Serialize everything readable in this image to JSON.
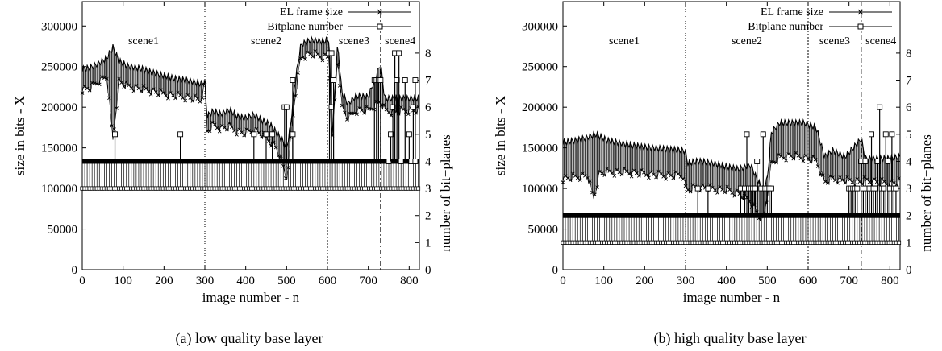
{
  "chart_data": [
    {
      "type": "line",
      "caption": "(a) low quality base layer",
      "xlabel": "image number - n",
      "ylabel": "size in bits - X",
      "y2label": "number of bit−planes",
      "xlim": [
        0,
        825
      ],
      "ylim": [
        0,
        330000
      ],
      "y2lim": [
        0,
        9.9
      ],
      "x_ticks": [
        0,
        100,
        200,
        300,
        400,
        500,
        600,
        700,
        800
      ],
      "y_ticks": [
        0,
        50000,
        100000,
        150000,
        200000,
        250000,
        300000
      ],
      "y2_ticks": [
        0,
        1,
        2,
        3,
        4,
        5,
        6,
        7,
        8
      ],
      "legend": [
        "EL frame size",
        "Bitplane number"
      ],
      "scene_lines": [
        {
          "x": 300,
          "label": "scene1",
          "label_x": 150
        },
        {
          "x": 600,
          "label": "scene2",
          "label_x": 450
        },
        {
          "x": 730,
          "label": "scene3",
          "label_x": 665
        },
        {
          "label": "scene4",
          "label_x": 778
        }
      ],
      "series": [
        {
          "name": "EL frame size",
          "upper": [
            [
              0,
              248000
            ],
            [
              20,
              250000
            ],
            [
              40,
              255000
            ],
            [
              60,
              262000
            ],
            [
              75,
              275000
            ],
            [
              90,
              258000
            ],
            [
              110,
              252000
            ],
            [
              130,
              250000
            ],
            [
              150,
              248000
            ],
            [
              170,
              244000
            ],
            [
              200,
              240000
            ],
            [
              230,
              236000
            ],
            [
              260,
              234000
            ],
            [
              290,
              230000
            ],
            [
              300,
              232000
            ],
            [
              305,
              190000
            ],
            [
              320,
              196000
            ],
            [
              340,
              193000
            ],
            [
              360,
              198000
            ],
            [
              380,
              190000
            ],
            [
              400,
              188000
            ],
            [
              420,
              192000
            ],
            [
              440,
              185000
            ],
            [
              460,
              180000
            ],
            [
              475,
              170000
            ],
            [
              490,
              160000
            ],
            [
              500,
              150000
            ],
            [
              510,
              180000
            ],
            [
              520,
              230000
            ],
            [
              535,
              278000
            ],
            [
              560,
              284000
            ],
            [
              590,
              282000
            ],
            [
              605,
              285000
            ],
            [
              610,
              155000
            ],
            [
              625,
              280000
            ],
            [
              635,
              220000
            ],
            [
              650,
              205000
            ],
            [
              670,
              215000
            ],
            [
              700,
              214000
            ],
            [
              730,
              255000
            ],
            [
              740,
              212000
            ],
            [
              760,
              212000
            ],
            [
              790,
              212000
            ],
            [
              820,
              212000
            ]
          ],
          "lower": [
            [
              0,
              222000
            ],
            [
              20,
              224000
            ],
            [
              40,
              232000
            ],
            [
              60,
              238000
            ],
            [
              75,
              160000
            ],
            [
              90,
              232000
            ],
            [
              110,
              226000
            ],
            [
              130,
              224000
            ],
            [
              150,
              222000
            ],
            [
              170,
              220000
            ],
            [
              200,
              216000
            ],
            [
              230,
              214000
            ],
            [
              260,
              212000
            ],
            [
              290,
              208000
            ],
            [
              300,
              228000
            ],
            [
              305,
              170000
            ],
            [
              320,
              178000
            ],
            [
              340,
              174000
            ],
            [
              360,
              176000
            ],
            [
              380,
              170000
            ],
            [
              400,
              168000
            ],
            [
              420,
              172000
            ],
            [
              440,
              166000
            ],
            [
              460,
              158000
            ],
            [
              475,
              150000
            ],
            [
              490,
              130000
            ],
            [
              500,
              110000
            ],
            [
              510,
              160000
            ],
            [
              520,
              210000
            ],
            [
              535,
              262000
            ],
            [
              560,
              266000
            ],
            [
              590,
              262000
            ],
            [
              605,
              262000
            ],
            [
              610,
              145000
            ],
            [
              625,
              262000
            ],
            [
              635,
              200000
            ],
            [
              650,
              186000
            ],
            [
              670,
              196000
            ],
            [
              700,
              196000
            ],
            [
              730,
              208000
            ],
            [
              740,
              196000
            ],
            [
              760,
              194000
            ],
            [
              790,
              196000
            ],
            [
              820,
              196000
            ]
          ]
        },
        {
          "name": "Bitplane number",
          "base_level": 3,
          "thick_level": 4,
          "spikes": [
            [
              80,
              5
            ],
            [
              240,
              5
            ],
            [
              420,
              5
            ],
            [
              450,
              5
            ],
            [
              465,
              5
            ],
            [
              495,
              6
            ],
            [
              500,
              6
            ],
            [
              515,
              7
            ],
            [
              515,
              5
            ],
            [
              605,
              8
            ],
            [
              610,
              8
            ],
            [
              610,
              6
            ],
            [
              615,
              7
            ],
            [
              715,
              7
            ],
            [
              720,
              7
            ],
            [
              725,
              7
            ],
            [
              730,
              7
            ],
            [
              750,
              4
            ],
            [
              755,
              5
            ],
            [
              760,
              6
            ],
            [
              765,
              8
            ],
            [
              770,
              7
            ],
            [
              775,
              8
            ],
            [
              780,
              4
            ],
            [
              790,
              7
            ],
            [
              800,
              5
            ],
            [
              805,
              4
            ],
            [
              810,
              6
            ],
            [
              815,
              7
            ],
            [
              815,
              4
            ]
          ]
        }
      ]
    },
    {
      "type": "line",
      "caption": "(b) high quality base layer",
      "xlabel": "image number - n",
      "ylabel": "size in bits - X",
      "y2label": "number of bit−planes",
      "xlim": [
        0,
        825
      ],
      "ylim": [
        0,
        330000
      ],
      "y2lim": [
        0,
        9.9
      ],
      "x_ticks": [
        0,
        100,
        200,
        300,
        400,
        500,
        600,
        700,
        800
      ],
      "y_ticks": [
        0,
        50000,
        100000,
        150000,
        200000,
        250000,
        300000
      ],
      "y2_ticks": [
        0,
        1,
        2,
        3,
        4,
        5,
        6,
        7,
        8
      ],
      "legend": [
        "EL frame size",
        "Bitplane number"
      ],
      "scene_lines": [
        {
          "x": 300,
          "label": "scene1",
          "label_x": 150
        },
        {
          "x": 600,
          "label": "scene2",
          "label_x": 450
        },
        {
          "x": 730,
          "label": "scene3",
          "label_x": 665
        },
        {
          "label": "scene4",
          "label_x": 778
        }
      ],
      "series": [
        {
          "name": "EL frame size",
          "upper": [
            [
              0,
              158000
            ],
            [
              30,
              160000
            ],
            [
              60,
              164000
            ],
            [
              80,
              168000
            ],
            [
              110,
              160000
            ],
            [
              150,
              156000
            ],
            [
              200,
              152000
            ],
            [
              250,
              150000
            ],
            [
              295,
              148000
            ],
            [
              300,
              146000
            ],
            [
              305,
              132000
            ],
            [
              330,
              135000
            ],
            [
              360,
              133000
            ],
            [
              400,
              128000
            ],
            [
              430,
              125000
            ],
            [
              460,
              130000
            ],
            [
              475,
              112000
            ],
            [
              490,
              100000
            ],
            [
              500,
              112000
            ],
            [
              510,
              170000
            ],
            [
              530,
              182000
            ],
            [
              560,
              182000
            ],
            [
              590,
              182000
            ],
            [
              620,
              176000
            ],
            [
              640,
              140000
            ],
            [
              660,
              148000
            ],
            [
              690,
              140000
            ],
            [
              730,
              162000
            ],
            [
              740,
              138000
            ],
            [
              770,
              138000
            ],
            [
              800,
              138000
            ],
            [
              820,
              140000
            ]
          ],
          "lower": [
            [
              0,
              112000
            ],
            [
              30,
              114000
            ],
            [
              60,
              116000
            ],
            [
              75,
              88000
            ],
            [
              90,
              118000
            ],
            [
              110,
              120000
            ],
            [
              150,
              120000
            ],
            [
              200,
              118000
            ],
            [
              250,
              116000
            ],
            [
              295,
              116000
            ],
            [
              300,
              100000
            ],
            [
              305,
              98000
            ],
            [
              330,
              102000
            ],
            [
              360,
              100000
            ],
            [
              400,
              98000
            ],
            [
              430,
              94000
            ],
            [
              460,
              84000
            ],
            [
              475,
              70000
            ],
            [
              490,
              60000
            ],
            [
              500,
              90000
            ],
            [
              510,
              130000
            ],
            [
              530,
              138000
            ],
            [
              560,
              140000
            ],
            [
              590,
              138000
            ],
            [
              620,
              134000
            ],
            [
              640,
              108000
            ],
            [
              660,
              112000
            ],
            [
              690,
              110000
            ],
            [
              730,
              108000
            ],
            [
              740,
              110000
            ],
            [
              770,
              108000
            ],
            [
              800,
              106000
            ],
            [
              820,
              108000
            ]
          ]
        },
        {
          "name": "Bitplane number",
          "base_level": 1,
          "thick_level": 2,
          "spikes": [
            [
              330,
              3
            ],
            [
              355,
              3
            ],
            [
              435,
              3
            ],
            [
              445,
              3
            ],
            [
              450,
              5
            ],
            [
              455,
              3
            ],
            [
              460,
              3
            ],
            [
              465,
              3
            ],
            [
              470,
              3
            ],
            [
              475,
              4
            ],
            [
              485,
              3
            ],
            [
              490,
              5
            ],
            [
              495,
              3
            ],
            [
              500,
              3
            ],
            [
              505,
              3
            ],
            [
              510,
              3
            ],
            [
              700,
              3
            ],
            [
              705,
              3
            ],
            [
              710,
              3
            ],
            [
              715,
              3
            ],
            [
              720,
              3
            ],
            [
              730,
              4
            ],
            [
              735,
              3
            ],
            [
              740,
              4
            ],
            [
              745,
              3
            ],
            [
              750,
              3
            ],
            [
              755,
              5
            ],
            [
              760,
              3
            ],
            [
              765,
              3
            ],
            [
              770,
              4
            ],
            [
              775,
              6
            ],
            [
              780,
              3
            ],
            [
              785,
              3
            ],
            [
              790,
              5
            ],
            [
              795,
              4
            ],
            [
              800,
              3
            ],
            [
              805,
              5
            ],
            [
              810,
              3
            ],
            [
              815,
              3
            ]
          ]
        }
      ]
    }
  ]
}
